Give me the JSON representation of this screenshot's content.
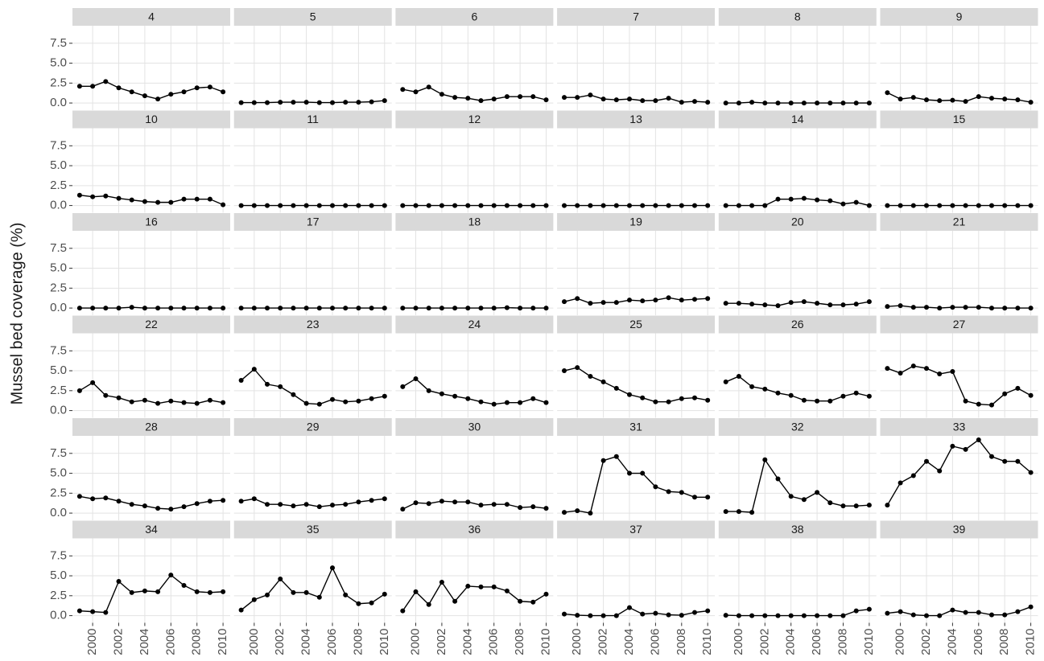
{
  "chart_data": {
    "type": "line",
    "y_label": "Mussel bed coverage (%)",
    "color": "#000000",
    "grid": true,
    "x": [
      1999,
      2000,
      2001,
      2002,
      2003,
      2004,
      2005,
      2006,
      2007,
      2008,
      2009,
      2010
    ],
    "xlim": [
      1998.45,
      2010.55
    ],
    "xticks": [
      2000,
      2002,
      2004,
      2006,
      2008,
      2010
    ],
    "ylim": [
      -0.9,
      9.7
    ],
    "yticks": [
      {
        "value": 0,
        "label": "0.0"
      },
      {
        "value": 2.5,
        "label": "2.5"
      },
      {
        "value": 5,
        "label": "5.0"
      },
      {
        "value": 7.5,
        "label": "7.5"
      }
    ],
    "panels": [
      {
        "title": "4",
        "values": [
          2.1,
          2.1,
          2.7,
          1.9,
          1.4,
          0.9,
          0.5,
          1.1,
          1.4,
          1.9,
          2.0,
          1.4
        ]
      },
      {
        "title": "5",
        "values": [
          0.05,
          0.05,
          0.05,
          0.1,
          0.1,
          0.1,
          0.05,
          0.05,
          0.1,
          0.1,
          0.15,
          0.3
        ]
      },
      {
        "title": "6",
        "values": [
          1.7,
          1.4,
          2.0,
          1.1,
          0.7,
          0.6,
          0.3,
          0.5,
          0.8,
          0.8,
          0.8,
          0.4
        ]
      },
      {
        "title": "7",
        "values": [
          0.7,
          0.7,
          1.0,
          0.5,
          0.4,
          0.5,
          0.3,
          0.3,
          0.6,
          0.1,
          0.2,
          0.1
        ]
      },
      {
        "title": "8",
        "values": [
          0,
          0,
          0.1,
          0,
          0,
          0,
          0,
          0,
          0,
          0,
          0,
          0
        ]
      },
      {
        "title": "9",
        "values": [
          1.3,
          0.5,
          0.7,
          0.4,
          0.3,
          0.35,
          0.2,
          0.8,
          0.6,
          0.5,
          0.4,
          0.1
        ]
      },
      {
        "title": "10",
        "values": [
          1.3,
          1.1,
          1.2,
          0.9,
          0.7,
          0.5,
          0.4,
          0.4,
          0.8,
          0.8,
          0.8,
          0.1
        ]
      },
      {
        "title": "11",
        "values": [
          0,
          0,
          0,
          0,
          0,
          0,
          0,
          0,
          0,
          0,
          0,
          0
        ]
      },
      {
        "title": "12",
        "values": [
          0,
          0,
          0,
          0,
          0,
          0,
          0,
          0,
          0,
          0,
          0,
          0
        ]
      },
      {
        "title": "13",
        "values": [
          0,
          0,
          0,
          0,
          0,
          0,
          0,
          0,
          0,
          0,
          0,
          0
        ]
      },
      {
        "title": "14",
        "values": [
          0,
          0,
          0,
          0,
          0.8,
          0.8,
          0.9,
          0.7,
          0.6,
          0.2,
          0.4,
          0
        ]
      },
      {
        "title": "15",
        "values": [
          0,
          0,
          0,
          0,
          0,
          0,
          0,
          0,
          0,
          0,
          0,
          0
        ]
      },
      {
        "title": "16",
        "values": [
          0,
          0,
          0,
          0,
          0.1,
          0,
          0,
          0,
          0,
          0,
          0,
          0
        ]
      },
      {
        "title": "17",
        "values": [
          0,
          0,
          0,
          0,
          0,
          0,
          0,
          0,
          0,
          0,
          0,
          0
        ]
      },
      {
        "title": "18",
        "values": [
          0,
          0,
          0,
          0,
          0,
          0,
          0,
          0,
          0.05,
          0,
          0,
          0
        ]
      },
      {
        "title": "19",
        "values": [
          0.8,
          1.2,
          0.6,
          0.7,
          0.7,
          1.0,
          0.9,
          1.0,
          1.3,
          1.0,
          1.1,
          1.2
        ]
      },
      {
        "title": "20",
        "values": [
          0.6,
          0.6,
          0.5,
          0.4,
          0.3,
          0.7,
          0.8,
          0.6,
          0.4,
          0.4,
          0.5,
          0.8
        ]
      },
      {
        "title": "21",
        "values": [
          0.2,
          0.3,
          0.1,
          0.1,
          0,
          0.1,
          0.1,
          0.1,
          0,
          0,
          0,
          0
        ]
      },
      {
        "title": "22",
        "values": [
          2.5,
          3.5,
          1.9,
          1.6,
          1.1,
          1.3,
          0.9,
          1.2,
          1.0,
          0.9,
          1.3,
          1.0
        ]
      },
      {
        "title": "23",
        "values": [
          3.8,
          5.2,
          3.3,
          3.0,
          2.0,
          0.9,
          0.8,
          1.4,
          1.1,
          1.2,
          1.5,
          1.8
        ]
      },
      {
        "title": "24",
        "values": [
          3.0,
          4.0,
          2.5,
          2.1,
          1.8,
          1.5,
          1.1,
          0.8,
          1.0,
          1.0,
          1.5,
          1.0
        ]
      },
      {
        "title": "25",
        "values": [
          5.0,
          5.4,
          4.3,
          3.6,
          2.8,
          2.0,
          1.6,
          1.1,
          1.1,
          1.5,
          1.6,
          1.3
        ]
      },
      {
        "title": "26",
        "values": [
          3.6,
          4.3,
          3.0,
          2.7,
          2.2,
          1.9,
          1.3,
          1.2,
          1.2,
          1.8,
          2.2,
          1.8
        ]
      },
      {
        "title": "27",
        "values": [
          5.3,
          4.7,
          5.6,
          5.3,
          4.6,
          4.9,
          1.2,
          0.8,
          0.7,
          2.1,
          2.8,
          1.9
        ]
      },
      {
        "title": "28",
        "values": [
          2.1,
          1.8,
          1.9,
          1.5,
          1.1,
          0.9,
          0.6,
          0.5,
          0.8,
          1.2,
          1.5,
          1.6
        ]
      },
      {
        "title": "29",
        "values": [
          1.5,
          1.8,
          1.1,
          1.1,
          0.9,
          1.1,
          0.8,
          1.0,
          1.1,
          1.4,
          1.6,
          1.8
        ]
      },
      {
        "title": "30",
        "values": [
          0.5,
          1.3,
          1.2,
          1.5,
          1.4,
          1.4,
          1.0,
          1.1,
          1.1,
          0.7,
          0.8,
          0.6
        ]
      },
      {
        "title": "31",
        "values": [
          0.1,
          0.3,
          0,
          6.6,
          7.1,
          5.0,
          5.0,
          3.3,
          2.7,
          2.6,
          2.0,
          2.0
        ]
      },
      {
        "title": "32",
        "values": [
          0.2,
          0.2,
          0.1,
          6.7,
          4.3,
          2.1,
          1.7,
          2.6,
          1.3,
          0.9,
          0.9,
          1.0
        ]
      },
      {
        "title": "33",
        "values": [
          1.0,
          3.8,
          4.7,
          6.5,
          5.3,
          8.4,
          8.0,
          9.2,
          7.1,
          6.5,
          6.5,
          5.1
        ]
      },
      {
        "title": "34",
        "values": [
          0.6,
          0.5,
          0.4,
          4.3,
          2.9,
          3.1,
          3.0,
          5.1,
          3.8,
          3.0,
          2.9,
          3.0
        ]
      },
      {
        "title": "35",
        "values": [
          0.7,
          2.0,
          2.6,
          4.6,
          2.9,
          2.9,
          2.3,
          6.0,
          2.6,
          1.5,
          1.6,
          2.7
        ]
      },
      {
        "title": "36",
        "values": [
          0.6,
          3.0,
          1.4,
          4.2,
          1.8,
          3.7,
          3.6,
          3.6,
          3.1,
          1.8,
          1.7,
          2.7
        ]
      },
      {
        "title": "37",
        "values": [
          0.2,
          0.05,
          0,
          0,
          0,
          1.0,
          0.2,
          0.3,
          0.1,
          0.05,
          0.4,
          0.6
        ]
      },
      {
        "title": "38",
        "values": [
          0.05,
          0,
          0,
          0,
          0,
          0,
          0,
          0,
          0,
          0,
          0.6,
          0.8
        ]
      },
      {
        "title": "39",
        "values": [
          0.3,
          0.5,
          0.1,
          0,
          0,
          0.7,
          0.4,
          0.4,
          0.1,
          0.1,
          0.5,
          1.1
        ]
      }
    ]
  }
}
